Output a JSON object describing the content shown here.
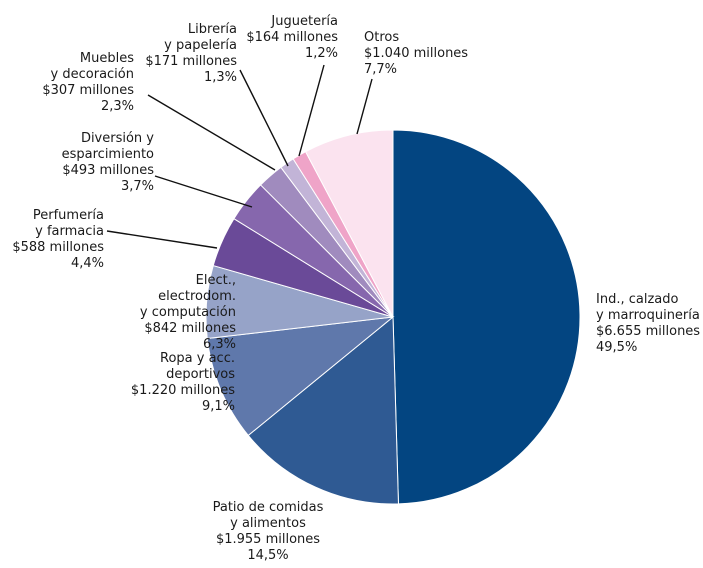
{
  "chart_data": {
    "type": "pie",
    "title": "",
    "start": "top",
    "direction": "clockwise",
    "slices": [
      {
        "category": "Ind., calzado y marroquinería",
        "value": 6655,
        "amount_label": "$6.655 millones",
        "percent": 49.5,
        "percent_label": "49,5%",
        "color": "#034581",
        "label_lines": [
          "Ind., calzado",
          "y marroquinería",
          "$6.655 millones",
          "49,5%"
        ]
      },
      {
        "category": "Patio de comidas y alimentos",
        "value": 1955,
        "amount_label": "$1.955 millones",
        "percent": 14.5,
        "percent_label": "14,5%",
        "color": "#2f5a93",
        "label_lines": [
          "Patio de comidas",
          "y alimentos",
          "$1.955 millones",
          "14,5%"
        ]
      },
      {
        "category": "Ropa y acc. deportivos",
        "value": 1220,
        "amount_label": "$1.220 millones",
        "percent": 9.1,
        "percent_label": "9,1%",
        "color": "#5f78ab",
        "label_lines": [
          "Ropa y acc.",
          "deportivos",
          "$1.220 millones",
          "9,1%"
        ]
      },
      {
        "category": "Elect., electrodom. y computación",
        "value": 842,
        "amount_label": "$842 millones",
        "percent": 6.3,
        "percent_label": "6,3%",
        "color": "#96a3c8",
        "label_lines": [
          "Elect.,",
          "electrodom.",
          "y computación",
          "$842 millones",
          "6,3%"
        ]
      },
      {
        "category": "Perfumería y farmacia",
        "value": 588,
        "amount_label": "$588 millones",
        "percent": 4.4,
        "percent_label": "4,4%",
        "color": "#6a4a98",
        "label_lines": [
          "Perfumería",
          "y farmacia",
          "$588 millones",
          "4,4%"
        ]
      },
      {
        "category": "Diversión y esparcimiento",
        "value": 493,
        "amount_label": "$493 millones",
        "percent": 3.7,
        "percent_label": "3,7%",
        "color": "#8667ad",
        "label_lines": [
          "Diversión y",
          "esparcimiento",
          "$493 millones",
          "3,7%"
        ]
      },
      {
        "category": "Muebles y decoración",
        "value": 307,
        "amount_label": "$307 millones",
        "percent": 2.3,
        "percent_label": "2,3%",
        "color": "#a08bbe",
        "label_lines": [
          "Muebles",
          "y decoración",
          "$307 millones",
          "2,3%"
        ]
      },
      {
        "category": "Librería y papelería",
        "value": 171,
        "amount_label": "$171 millones",
        "percent": 1.3,
        "percent_label": "1,3%",
        "color": "#c2b4d7",
        "label_lines": [
          "Librería",
          "y papelería",
          "$171 millones",
          "1,3%"
        ]
      },
      {
        "category": "Juguetería",
        "value": 164,
        "amount_label": "$164 millones",
        "percent": 1.2,
        "percent_label": "1,2%",
        "color": "#efa4c8",
        "label_lines": [
          "Juguetería",
          "$164 millones",
          "1,2%"
        ]
      },
      {
        "category": "Otros",
        "value": 1040,
        "amount_label": "$1.040 millones",
        "percent": 7.7,
        "percent_label": "7,7%",
        "color": "#fbe3ef",
        "label_lines": [
          "Otros",
          "$1.040 millones",
          "7,7%"
        ]
      }
    ]
  }
}
